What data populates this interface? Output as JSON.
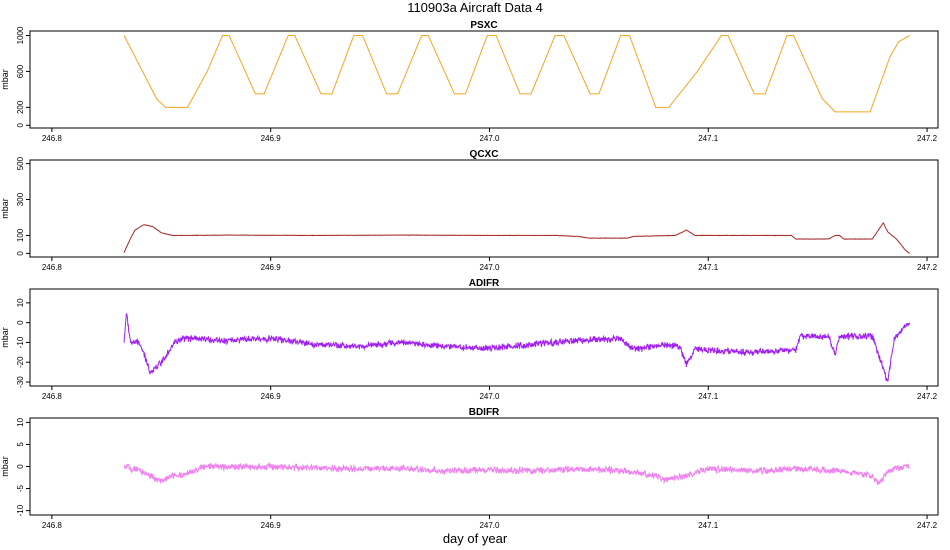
{
  "figure": {
    "title": "110903a   Aircraft Data 4",
    "xlabel": "day of year"
  },
  "chart_data": [
    {
      "type": "line",
      "title": "PSXC",
      "ylabel": "mbar",
      "color": "#f5a623",
      "xlim": [
        246.79,
        247.205
      ],
      "ylim": [
        -30,
        1050
      ],
      "xticks": [
        246.8,
        246.9,
        247.0,
        247.1,
        247.2
      ],
      "xtick_labels": [
        "246.8",
        "246.9",
        "247.0",
        "247.1",
        "247.2"
      ],
      "yticks": [
        0,
        200,
        600,
        1000
      ],
      "ytick_labels": [
        "0",
        "200",
        "600",
        "1000"
      ],
      "noise": 0,
      "series": [
        {
          "x": [
            246.833,
            246.848,
            246.852,
            246.858,
            246.862,
            246.871,
            246.878,
            246.881,
            246.893,
            246.897,
            246.908,
            246.911,
            246.923,
            246.928,
            246.938,
            246.942,
            246.953,
            246.958,
            246.969,
            246.972,
            246.984,
            246.989,
            246.999,
            247.003,
            247.014,
            247.019,
            247.03,
            247.034,
            247.046,
            247.05,
            247.06,
            247.064,
            247.076,
            247.078,
            247.082,
            247.095,
            247.106,
            247.109,
            247.121,
            247.126,
            247.136,
            247.139,
            247.152,
            247.158,
            247.17,
            247.174,
            247.183,
            247.187,
            247.192
          ],
          "y": [
            1000,
            290,
            200,
            200,
            200,
            600,
            1000,
            1000,
            350,
            350,
            1000,
            1000,
            350,
            350,
            1000,
            1000,
            350,
            350,
            1000,
            1000,
            350,
            350,
            1000,
            1000,
            350,
            350,
            1000,
            1000,
            350,
            350,
            1000,
            1000,
            200,
            200,
            200,
            600,
            1000,
            1000,
            350,
            350,
            1000,
            1000,
            300,
            150,
            150,
            150,
            760,
            930,
            1000
          ]
        }
      ]
    },
    {
      "type": "line",
      "title": "QCXC",
      "ylabel": "mbar",
      "color": "#a52a2a",
      "xlim": [
        246.79,
        247.205
      ],
      "ylim": [
        -20,
        520
      ],
      "xticks": [
        246.8,
        246.9,
        247.0,
        247.1,
        247.2
      ],
      "xtick_labels": [
        "246.8",
        "246.9",
        "247.0",
        "247.1",
        "247.2"
      ],
      "yticks": [
        0,
        100,
        300,
        500
      ],
      "ytick_labels": [
        "0",
        "100",
        "300",
        "500"
      ],
      "noise": 1.5,
      "series": [
        {
          "x": [
            246.833,
            246.836,
            246.838,
            246.842,
            246.846,
            246.85,
            246.855,
            246.86,
            246.88,
            246.92,
            246.96,
            247.0,
            247.03,
            247.04,
            247.046,
            247.055,
            247.063,
            247.066,
            247.085,
            247.09,
            247.094,
            247.1,
            247.138,
            247.14,
            247.155,
            247.158,
            247.16,
            247.162,
            247.175,
            247.18,
            247.182,
            247.186,
            247.19,
            247.192
          ],
          "y": [
            5,
            85,
            130,
            160,
            150,
            115,
            100,
            100,
            102,
            100,
            102,
            100,
            100,
            95,
            85,
            85,
            85,
            95,
            100,
            130,
            100,
            100,
            100,
            80,
            80,
            100,
            100,
            80,
            80,
            170,
            120,
            80,
            20,
            0
          ]
        }
      ]
    },
    {
      "type": "line",
      "title": "ADIFR",
      "ylabel": "mbar",
      "color": "#a020f0",
      "xlim": [
        246.79,
        247.205
      ],
      "ylim": [
        -32,
        17
      ],
      "xticks": [
        246.8,
        246.9,
        247.0,
        247.1,
        247.2
      ],
      "xtick_labels": [
        "246.8",
        "246.9",
        "247.0",
        "247.1",
        "247.2"
      ],
      "yticks": [
        -30,
        -20,
        -10,
        0,
        10
      ],
      "ytick_labels": [
        "-30",
        "-20",
        "-10",
        "0",
        "10"
      ],
      "noise": 2,
      "series": [
        {
          "x": [
            246.833,
            246.834,
            246.836,
            246.84,
            246.845,
            246.85,
            246.856,
            246.86,
            246.88,
            246.9,
            246.92,
            246.94,
            246.96,
            246.98,
            247.0,
            247.02,
            247.04,
            247.06,
            247.065,
            247.07,
            247.08,
            247.087,
            247.09,
            247.094,
            247.1,
            247.12,
            247.14,
            247.142,
            247.155,
            247.158,
            247.16,
            247.175,
            247.18,
            247.182,
            247.185,
            247.19,
            247.192
          ],
          "y": [
            -10,
            5,
            -10,
            -10,
            -25,
            -20,
            -10,
            -8,
            -9,
            -8,
            -11,
            -12,
            -10,
            -12,
            -13,
            -11,
            -9,
            -8,
            -13,
            -13,
            -11,
            -12,
            -21,
            -13,
            -14,
            -15,
            -14,
            -7,
            -7,
            -16,
            -7,
            -7,
            -23,
            -30,
            -8,
            -2,
            0
          ]
        }
      ]
    },
    {
      "type": "line",
      "title": "BDIFR",
      "ylabel": "mbar",
      "color": "#ee82ee",
      "xlim": [
        246.79,
        247.205
      ],
      "ylim": [
        -11,
        11
      ],
      "xticks": [
        246.8,
        246.9,
        247.0,
        247.1,
        247.2
      ],
      "xtick_labels": [
        "246.8",
        "246.9",
        "247.0",
        "247.1",
        "247.2"
      ],
      "yticks": [
        -10,
        -5,
        0,
        5,
        10
      ],
      "ytick_labels": [
        "-10",
        "-5",
        "0",
        "5",
        "10"
      ],
      "noise": 0.9,
      "series": [
        {
          "x": [
            246.833,
            246.84,
            246.845,
            246.85,
            246.855,
            246.86,
            246.87,
            246.9,
            246.93,
            246.96,
            246.98,
            247.0,
            247.02,
            247.04,
            247.06,
            247.075,
            247.08,
            247.09,
            247.1,
            247.12,
            247.14,
            247.16,
            247.175,
            247.178,
            247.182,
            247.19,
            247.192
          ],
          "y": [
            0,
            -1,
            -2,
            -3.5,
            -2,
            -2,
            0,
            0,
            -0.5,
            -0.5,
            -1,
            -0.8,
            -1,
            -0.5,
            -1,
            -2,
            -3,
            -2,
            -0.5,
            -1,
            -0.5,
            -1,
            -2,
            -4,
            -1,
            0,
            0
          ]
        }
      ]
    }
  ]
}
